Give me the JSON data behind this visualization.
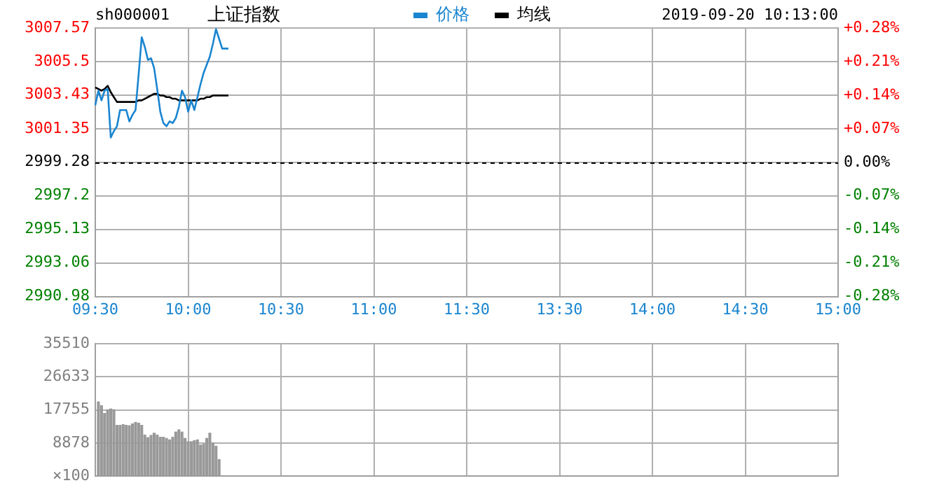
{
  "chart_data": [
    {
      "type": "line",
      "title": "上证指数",
      "annotations": [
        "sh000001",
        "2019-09-20 10:13:00"
      ],
      "legend": "top",
      "grid": true,
      "marker": "none",
      "categories": [
        "09:30",
        null,
        null,
        null,
        null,
        null,
        null,
        null,
        null,
        null,
        null,
        null,
        null,
        null,
        null,
        null,
        null,
        null,
        null,
        null,
        null,
        null,
        null,
        null,
        null,
        null,
        null,
        null,
        null,
        null,
        "10:00",
        null,
        null,
        null,
        null,
        null,
        null,
        null,
        null,
        null,
        null,
        null,
        null,
        null,
        null,
        null,
        null,
        null,
        null,
        null,
        null,
        null,
        null,
        null,
        null,
        null,
        null,
        null,
        null,
        null,
        "10:30",
        null,
        null,
        null,
        null,
        null,
        null,
        null,
        null,
        null,
        null,
        null,
        null,
        null,
        null,
        null,
        null,
        null,
        null,
        null,
        null,
        null,
        null,
        null,
        null,
        null,
        null,
        null,
        null,
        null,
        "11:00",
        null,
        null,
        null,
        null,
        null,
        null,
        null,
        null,
        null,
        null,
        null,
        null,
        null,
        null,
        null,
        null,
        null,
        null,
        null,
        null,
        null,
        null,
        null,
        null,
        null,
        null,
        null,
        null,
        null,
        "11:30",
        null,
        null,
        null,
        null,
        null,
        null,
        null,
        null,
        null,
        null,
        null,
        null,
        null,
        null,
        null,
        null,
        null,
        null,
        null,
        null,
        null,
        null,
        null,
        null,
        null,
        null,
        null,
        null,
        null,
        "13:30",
        null,
        null,
        null,
        null,
        null,
        null,
        null,
        null,
        null,
        null,
        null,
        null,
        null,
        null,
        null,
        null,
        null,
        null,
        null,
        null,
        null,
        null,
        null,
        null,
        null,
        null,
        null,
        null,
        null,
        "14:00",
        null,
        null,
        null,
        null,
        null,
        null,
        null,
        null,
        null,
        null,
        null,
        null,
        null,
        null,
        null,
        null,
        null,
        null,
        null,
        null,
        null,
        null,
        null,
        null,
        null,
        null,
        null,
        null,
        null,
        "14:30",
        null,
        null,
        null,
        null,
        null,
        null,
        null,
        null,
        null,
        null,
        null,
        null,
        null,
        null,
        null,
        null,
        null,
        null,
        null,
        null,
        null,
        null,
        null,
        null,
        null,
        null,
        null,
        null,
        null,
        "15:00"
      ],
      "ylim": [
        2990.98,
        3007.57
      ],
      "yticks": [
        2990.98,
        2993.06,
        2995.13,
        2997.2,
        2999.28,
        3001.35,
        3003.43,
        3005.5,
        3007.57
      ],
      "y2lim": [
        -0.28,
        0.28
      ],
      "y2ticks": [
        {
          "value": -0.28,
          "label": "-0.28%"
        },
        {
          "value": -0.21,
          "label": "-0.21%"
        },
        {
          "value": -0.14,
          "label": "-0.14%"
        },
        {
          "value": -0.07,
          "label": "-0.07%"
        },
        {
          "value": 0,
          "label": "0.00%"
        },
        {
          "value": 0.07,
          "label": "+0.07%"
        },
        {
          "value": 0.14,
          "label": "+0.14%"
        },
        {
          "value": 0.21,
          "label": "+0.21%"
        },
        {
          "value": 0.28,
          "label": "+0.28%"
        }
      ],
      "ref_lines": [
        {
          "axis": "y",
          "value": 2999.28,
          "color": "#000000",
          "line_style": "dashed"
        }
      ],
      "series": [
        {
          "name": "价格",
          "color": "#1a85d0",
          "values": [
            3002.8,
            3003.7,
            3003.1,
            3003.7,
            3003.8,
            3000.8,
            3001.2,
            3001.5,
            3002.5,
            3002.5,
            3002.5,
            3001.8,
            3002.2,
            3002.5,
            3004.7,
            3007.0,
            3006.4,
            3005.6,
            3005.7,
            3005.1,
            3003.8,
            3002.4,
            3001.7,
            3001.5,
            3001.8,
            3001.7,
            3002.0,
            3002.7,
            3003.7,
            3003.3,
            3002.4,
            3003.1,
            3002.5,
            3003.3,
            3004.1,
            3004.8,
            3005.3,
            3005.8,
            3006.6,
            3007.5,
            3006.9,
            3006.3,
            3006.3,
            3006.3,
            null,
            null,
            null,
            null,
            null,
            null,
            null,
            null,
            null,
            null,
            null,
            null,
            null,
            null,
            null,
            null,
            null,
            null,
            null,
            null,
            null,
            null,
            null,
            null,
            null,
            null,
            null,
            null,
            null,
            null,
            null,
            null,
            null,
            null,
            null,
            null,
            null,
            null,
            null,
            null,
            null,
            null,
            null,
            null,
            null,
            null,
            null,
            null,
            null,
            null,
            null,
            null,
            null,
            null,
            null,
            null,
            null,
            null,
            null,
            null,
            null,
            null,
            null,
            null,
            null,
            null,
            null,
            null,
            null,
            null,
            null,
            null,
            null,
            null,
            null,
            null,
            null,
            null,
            null,
            null,
            null,
            null,
            null,
            null,
            null,
            null,
            null,
            null,
            null,
            null,
            null,
            null,
            null,
            null,
            null,
            null,
            null,
            null,
            null,
            null,
            null,
            null,
            null,
            null,
            null,
            null,
            null,
            null,
            null,
            null,
            null,
            null,
            null,
            null,
            null,
            null,
            null,
            null,
            null,
            null,
            null,
            null,
            null,
            null,
            null,
            null,
            null,
            null,
            null,
            null,
            null,
            null,
            null,
            null,
            null,
            null,
            null,
            null,
            null,
            null,
            null,
            null,
            null,
            null,
            null,
            null,
            null,
            null,
            null,
            null,
            null,
            null,
            null,
            null,
            null,
            null,
            null,
            null,
            null,
            null,
            null,
            null,
            null,
            null,
            null,
            null,
            null,
            null,
            null,
            null,
            null,
            null,
            null,
            null,
            null,
            null,
            null,
            null,
            null,
            null,
            null,
            null,
            null,
            null,
            null,
            null,
            null,
            null,
            null,
            null,
            null,
            null,
            null,
            null,
            null,
            null,
            null
          ]
        },
        {
          "name": "均线",
          "color": "#000000",
          "values": [
            3003.9,
            3003.8,
            3003.7,
            3003.8,
            3004.0,
            3003.6,
            3003.3,
            3003.0,
            3003.0,
            3003.0,
            3003.0,
            3003.0,
            3003.0,
            3003.0,
            3003.1,
            3003.1,
            3003.2,
            3003.3,
            3003.4,
            3003.5,
            3003.5,
            3003.4,
            3003.4,
            3003.3,
            3003.3,
            3003.2,
            3003.2,
            3003.1,
            3003.1,
            3003.1,
            3003.1,
            3003.1,
            3003.1,
            3003.1,
            3003.2,
            3003.2,
            3003.3,
            3003.3,
            3003.4,
            3003.4,
            3003.4,
            3003.4,
            3003.4,
            3003.4,
            null,
            null,
            null,
            null,
            null,
            null,
            null,
            null,
            null,
            null,
            null,
            null,
            null,
            null,
            null,
            null,
            null,
            null,
            null,
            null,
            null,
            null,
            null,
            null,
            null,
            null,
            null,
            null,
            null,
            null,
            null,
            null,
            null,
            null,
            null,
            null,
            null,
            null,
            null,
            null,
            null,
            null,
            null,
            null,
            null,
            null,
            null,
            null,
            null,
            null,
            null,
            null,
            null,
            null,
            null,
            null,
            null,
            null,
            null,
            null,
            null,
            null,
            null,
            null,
            null,
            null,
            null,
            null,
            null,
            null,
            null,
            null,
            null,
            null,
            null,
            null,
            null,
            null,
            null,
            null,
            null,
            null,
            null,
            null,
            null,
            null,
            null,
            null,
            null,
            null,
            null,
            null,
            null,
            null,
            null,
            null,
            null,
            null,
            null,
            null,
            null,
            null,
            null,
            null,
            null,
            null,
            null,
            null,
            null,
            null,
            null,
            null,
            null,
            null,
            null,
            null,
            null,
            null,
            null,
            null,
            null,
            null,
            null,
            null,
            null,
            null,
            null,
            null,
            null,
            null,
            null,
            null,
            null,
            null,
            null,
            null,
            null,
            null,
            null,
            null,
            null,
            null,
            null,
            null,
            null,
            null,
            null,
            null,
            null,
            null,
            null,
            null,
            null,
            null,
            null,
            null,
            null,
            null,
            null,
            null,
            null,
            null,
            null,
            null,
            null,
            null,
            null,
            null,
            null,
            null,
            null,
            null,
            null,
            null,
            null,
            null,
            null,
            null,
            null,
            null,
            null,
            null,
            null,
            null,
            null,
            null,
            null,
            null,
            null,
            null,
            null,
            null,
            null,
            null,
            null,
            null,
            null
          ]
        }
      ]
    },
    {
      "type": "bar",
      "color": "#999999",
      "grid": true,
      "tick_labels": "y",
      "categories": [
        null,
        null,
        null,
        null,
        null,
        null,
        null,
        null,
        null,
        null,
        null,
        null,
        null,
        null,
        null,
        null,
        null,
        null,
        null,
        null,
        null,
        null,
        null,
        null,
        null,
        null,
        null,
        null,
        null,
        null,
        null,
        null,
        null,
        null,
        null,
        null,
        null,
        null,
        null,
        null,
        null,
        null,
        null,
        null,
        null,
        null,
        null,
        null,
        null,
        null,
        null,
        null,
        null,
        null,
        null,
        null,
        null,
        null,
        null,
        null,
        null,
        null,
        null,
        null,
        null,
        null,
        null,
        null,
        null,
        null,
        null,
        null,
        null,
        null,
        null,
        null,
        null,
        null,
        null,
        null,
        null,
        null,
        null,
        null,
        null,
        null,
        null,
        null,
        null,
        null,
        null,
        null,
        null,
        null,
        null,
        null,
        null,
        null,
        null,
        null,
        null,
        null,
        null,
        null,
        null,
        null,
        null,
        null,
        null,
        null,
        null,
        null,
        null,
        null,
        null,
        null,
        null,
        null,
        null,
        null,
        null,
        null,
        null,
        null,
        null,
        null,
        null,
        null,
        null,
        null,
        null,
        null,
        null,
        null,
        null,
        null,
        null,
        null,
        null,
        null,
        null,
        null,
        null,
        null,
        null,
        null,
        null,
        null,
        null,
        null,
        null,
        null,
        null,
        null,
        null,
        null,
        null,
        null,
        null,
        null,
        null,
        null,
        null,
        null,
        null,
        null,
        null,
        null,
        null,
        null,
        null,
        null,
        null,
        null,
        null,
        null,
        null,
        null,
        null,
        null,
        null,
        null,
        null,
        null,
        null,
        null,
        null,
        null,
        null,
        null,
        null,
        null,
        null,
        null,
        null,
        null,
        null,
        null,
        null,
        null,
        null,
        null,
        null,
        null,
        null,
        null,
        null,
        null,
        null,
        null,
        null,
        null,
        null,
        null,
        null,
        null,
        null,
        null,
        null,
        null,
        null,
        null,
        null,
        null,
        null,
        null,
        null,
        null,
        null,
        null,
        null,
        null,
        null,
        null,
        null,
        null,
        null,
        null,
        null,
        null,
        null
      ],
      "ylabel": "×100",
      "ylim": [
        0,
        35510
      ],
      "yticks": [
        8878,
        17755,
        26633,
        35510
      ],
      "values": [
        null,
        19900,
        18900,
        16800,
        17800,
        18000,
        17800,
        13600,
        13600,
        13800,
        13600,
        13500,
        14000,
        14400,
        14200,
        13600,
        11000,
        10300,
        10900,
        11500,
        11000,
        10400,
        10400,
        10100,
        9700,
        10400,
        11800,
        12400,
        11800,
        10100,
        9200,
        9200,
        9500,
        9700,
        8300,
        8500,
        10100,
        11500,
        8900,
        8000,
        4400,
        null,
        null,
        null,
        null,
        null,
        null,
        null,
        null,
        null,
        null,
        null,
        null,
        null,
        null,
        null,
        null,
        null,
        null,
        null,
        null,
        null,
        null,
        null,
        null,
        null,
        null,
        null,
        null,
        null,
        null,
        null,
        null,
        null,
        null,
        null,
        null,
        null,
        null,
        null,
        null,
        null,
        null,
        null,
        null,
        null,
        null,
        null,
        null,
        null,
        null,
        null,
        null,
        null,
        null,
        null,
        null,
        null,
        null,
        null,
        null,
        null,
        null,
        null,
        null,
        null,
        null,
        null,
        null,
        null,
        null,
        null,
        null,
        null,
        null,
        null,
        null,
        null,
        null,
        null,
        null,
        null,
        null,
        null,
        null,
        null,
        null,
        null,
        null,
        null,
        null,
        null,
        null,
        null,
        null,
        null,
        null,
        null,
        null,
        null,
        null,
        null,
        null,
        null,
        null,
        null,
        null,
        null,
        null,
        null,
        null,
        null,
        null,
        null,
        null,
        null,
        null,
        null,
        null,
        null,
        null,
        null,
        null,
        null,
        null,
        null,
        null,
        null,
        null,
        null,
        null,
        null,
        null,
        null,
        null,
        null,
        null,
        null,
        null,
        null,
        null,
        null,
        null,
        null,
        null,
        null,
        null,
        null,
        null,
        null,
        null,
        null,
        null,
        null,
        null,
        null,
        null,
        null,
        null,
        null,
        null,
        null,
        null,
        null,
        null,
        null,
        null,
        null,
        null,
        null,
        null,
        null,
        null,
        null,
        null,
        null,
        null,
        null,
        null,
        null,
        null,
        null,
        null,
        null,
        null,
        null,
        null,
        null,
        null,
        null,
        null,
        null,
        null,
        null,
        null,
        null,
        null,
        null,
        null,
        null,
        null
      ]
    }
  ]
}
